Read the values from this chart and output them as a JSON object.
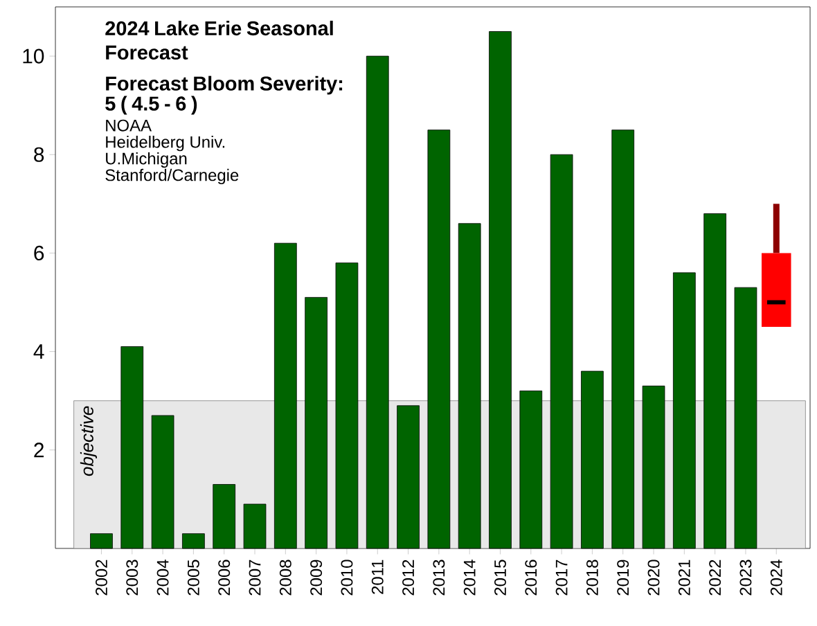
{
  "chart_data": {
    "type": "bar",
    "title": "2024 Lake Erie Seasonal Forecast",
    "subtitle": "Forecast Bloom Severity:",
    "annotations": [
      "5 ( 4.5 - 6 )",
      "NOAA",
      "Heidelberg Univ.",
      "U.Michigan",
      "Stanford/Carnegie"
    ],
    "categories": [
      "2002",
      "2003",
      "2004",
      "2005",
      "2006",
      "2007",
      "2008",
      "2009",
      "2010",
      "2011",
      "2012",
      "2013",
      "2014",
      "2015",
      "2016",
      "2017",
      "2018",
      "2019",
      "2020",
      "2021",
      "2022",
      "2023",
      "2024"
    ],
    "series": [
      {
        "color": "#006400",
        "values": [
          0.3,
          4.1,
          2.7,
          0.3,
          1.3,
          0.9,
          6.2,
          5.1,
          5.8,
          10.0,
          2.9,
          8.5,
          6.6,
          10.5,
          3.2,
          8.0,
          3.6,
          8.5,
          3.3,
          5.6,
          6.8,
          5.3,
          null
        ]
      },
      {
        "type": "box",
        "color": "#ff0000",
        "boxes": [
          null,
          null,
          null,
          null,
          null,
          null,
          null,
          null,
          null,
          null,
          null,
          null,
          null,
          null,
          null,
          null,
          null,
          null,
          null,
          null,
          null,
          null,
          {
            "low": 4.5,
            "q1": 4.5,
            "median": 5,
            "q3": 6,
            "high": 7
          }
        ]
      }
    ],
    "bands": [
      {
        "axis": "y",
        "from": 0,
        "to": 3,
        "label": "objective",
        "color": "#e8e8e8"
      }
    ],
    "ylim": [
      0,
      11
    ],
    "yticks": [
      2,
      4,
      6,
      8,
      10
    ],
    "grid": false
  }
}
